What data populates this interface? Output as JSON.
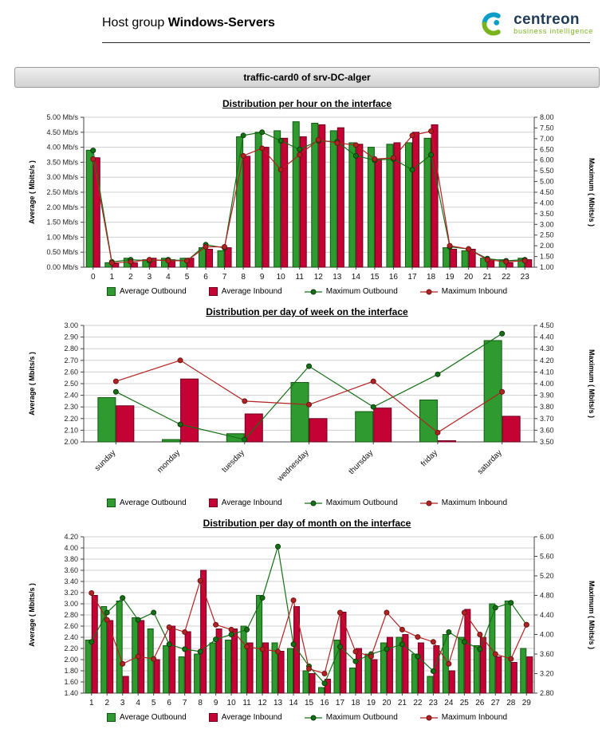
{
  "header": {
    "prefix": "Host group",
    "host_group": "Windows-Servers"
  },
  "logo": {
    "brand": "centreon",
    "subtitle": "business intelligence",
    "colors": {
      "teal": "#0C9EC7",
      "green": "#7AB41D",
      "navy": "#1F3B57"
    }
  },
  "report_title": "traffic-card0 of srv-DC-alger",
  "chart_data": [
    {
      "type": "bar",
      "title": "Distribution per hour on the interface",
      "ylabel_left": "Average ( Mbits/s )",
      "ylabel_right": "Maximum ( Mbits/s )",
      "left_axis": {
        "min": 0,
        "max": 5,
        "step": 0.5,
        "suffix": " Mb/s"
      },
      "right_axis": {
        "min": 1,
        "max": 8,
        "step": 0.5
      },
      "grid": true,
      "legend_position": "bottom",
      "categories": [
        "0",
        "1",
        "2",
        "3",
        "4",
        "5",
        "6",
        "7",
        "8",
        "9",
        "10",
        "11",
        "12",
        "13",
        "14",
        "15",
        "16",
        "17",
        "18",
        "19",
        "20",
        "21",
        "22",
        "23"
      ],
      "series": [
        {
          "name": "Average Outbound",
          "type": "bar",
          "axis": "left",
          "color": "#2F9A2F",
          "border": "#125812",
          "values": [
            3.9,
            0.15,
            0.3,
            0.25,
            0.3,
            0.3,
            0.65,
            0.55,
            4.35,
            4.5,
            4.55,
            4.85,
            4.8,
            4.55,
            4.15,
            4.0,
            4.1,
            4.15,
            4.3,
            0.65,
            0.55,
            0.3,
            0.25,
            0.3
          ]
        },
        {
          "name": "Average Inbound",
          "type": "bar",
          "axis": "left",
          "color": "#C40233",
          "border": "#6E0020",
          "values": [
            3.65,
            0.12,
            0.15,
            0.3,
            0.25,
            0.3,
            0.6,
            0.65,
            3.7,
            4.0,
            4.3,
            4.35,
            4.75,
            4.65,
            4.1,
            3.6,
            4.15,
            4.5,
            4.75,
            0.6,
            0.6,
            0.25,
            0.15,
            0.25
          ]
        },
        {
          "name": "Maximum Outbound",
          "type": "line",
          "axis": "right",
          "color": "#157015",
          "border": "#0A3D0A",
          "values": [
            6.45,
            1.25,
            1.35,
            1.3,
            1.35,
            1.3,
            2.05,
            1.9,
            7.15,
            7.3,
            6.9,
            6.5,
            6.9,
            6.85,
            6.2,
            6.0,
            6.05,
            5.55,
            6.25,
            1.95,
            1.85,
            1.4,
            1.3,
            1.35
          ]
        },
        {
          "name": "Maximum Inbound",
          "type": "line",
          "axis": "right",
          "color": "#B22222",
          "border": "#6E1414",
          "values": [
            6.05,
            1.2,
            1.25,
            1.35,
            1.3,
            1.3,
            1.95,
            1.95,
            6.2,
            6.55,
            5.55,
            6.25,
            6.95,
            6.8,
            6.7,
            6.05,
            6.1,
            7.15,
            7.35,
            2.0,
            1.85,
            1.35,
            1.25,
            1.3
          ]
        }
      ]
    },
    {
      "type": "bar",
      "title": "Distribution per day of week on the interface",
      "ylabel_left": "Average ( Mbits/s )",
      "ylabel_right": "Maximum ( Mbits/s )",
      "left_axis": {
        "min": 2.0,
        "max": 3.0,
        "step": 0.1
      },
      "right_axis": {
        "min": 3.5,
        "max": 4.5,
        "step": 0.1
      },
      "grid": true,
      "legend_position": "bottom",
      "categories": [
        "sunday",
        "monday",
        "tuesday",
        "wednesday",
        "thursday",
        "friday",
        "saturday"
      ],
      "series": [
        {
          "name": "Average Outbound",
          "type": "bar",
          "axis": "left",
          "color": "#2F9A2F",
          "border": "#125812",
          "values": [
            2.38,
            2.02,
            2.07,
            2.51,
            2.26,
            2.36,
            2.87
          ]
        },
        {
          "name": "Average Inbound",
          "type": "bar",
          "axis": "left",
          "color": "#C40233",
          "border": "#6E0020",
          "values": [
            2.31,
            2.54,
            2.24,
            2.2,
            2.29,
            2.01,
            2.22
          ]
        },
        {
          "name": "Maximum Outbound",
          "type": "line",
          "axis": "right",
          "color": "#157015",
          "border": "#0A3D0A",
          "values": [
            3.93,
            3.65,
            3.52,
            4.15,
            3.8,
            4.08,
            4.43
          ]
        },
        {
          "name": "Maximum Inbound",
          "type": "line",
          "axis": "right",
          "color": "#B22222",
          "border": "#6E1414",
          "values": [
            4.02,
            4.2,
            3.85,
            3.82,
            4.02,
            3.58,
            3.93
          ]
        }
      ]
    },
    {
      "type": "bar",
      "title": "Distribution per day of month on the interface",
      "ylabel_left": "Average ( Mbits/s )",
      "ylabel_right": "Maximum ( Mbits/s )",
      "left_axis": {
        "min": 1.4,
        "max": 4.2,
        "step": 0.2
      },
      "right_axis": {
        "min": 2.8,
        "max": 6.0,
        "step": 0.4
      },
      "grid": true,
      "legend_position": "bottom",
      "categories": [
        "1",
        "2",
        "3",
        "4",
        "5",
        "6",
        "7",
        "8",
        "9",
        "10",
        "11",
        "12",
        "13",
        "14",
        "15",
        "16",
        "17",
        "18",
        "19",
        "20",
        "21",
        "22",
        "23",
        "24",
        "25",
        "26",
        "27",
        "28",
        "29"
      ],
      "series": [
        {
          "name": "Average Outbound",
          "type": "bar",
          "axis": "left",
          "color": "#2F9A2F",
          "border": "#125812",
          "values": [
            2.35,
            2.95,
            3.05,
            2.75,
            2.55,
            2.25,
            2.05,
            2.1,
            2.3,
            2.35,
            2.6,
            3.15,
            2.3,
            2.2,
            1.8,
            1.5,
            2.35,
            1.85,
            2.1,
            2.3,
            2.4,
            2.1,
            1.7,
            2.45,
            2.4,
            2.25,
            3.0,
            3.05,
            2.2
          ]
        },
        {
          "name": "Average Inbound",
          "type": "bar",
          "axis": "left",
          "color": "#C40233",
          "border": "#6E0020",
          "values": [
            3.15,
            2.7,
            1.7,
            2.7,
            2.0,
            2.6,
            2.5,
            3.6,
            2.55,
            2.55,
            2.3,
            2.3,
            2.15,
            2.95,
            1.75,
            1.65,
            2.85,
            2.2,
            2.0,
            2.4,
            2.45,
            2.3,
            2.25,
            1.8,
            2.9,
            2.4,
            2.05,
            1.95,
            2.05
          ]
        },
        {
          "name": "Maximum Outbound",
          "type": "line",
          "axis": "right",
          "color": "#157015",
          "border": "#0A3D0A",
          "values": [
            3.85,
            4.45,
            4.75,
            4.3,
            4.45,
            3.8,
            3.7,
            3.65,
            3.9,
            4.0,
            4.1,
            4.75,
            5.8,
            3.8,
            3.35,
            3.0,
            3.75,
            3.45,
            3.6,
            3.7,
            3.8,
            3.55,
            3.25,
            4.05,
            3.85,
            3.7,
            4.55,
            4.65,
            4.2
          ]
        },
        {
          "name": "Maximum Inbound",
          "type": "line",
          "axis": "right",
          "color": "#B22222",
          "border": "#6E1414",
          "values": [
            4.85,
            4.3,
            3.4,
            3.55,
            3.5,
            4.15,
            4.05,
            5.1,
            4.2,
            4.1,
            3.75,
            3.7,
            3.65,
            4.7,
            3.3,
            3.2,
            4.45,
            3.65,
            3.55,
            4.45,
            4.1,
            3.95,
            3.85,
            3.4,
            4.45,
            4.0,
            3.6,
            3.5,
            4.2
          ]
        }
      ]
    }
  ]
}
